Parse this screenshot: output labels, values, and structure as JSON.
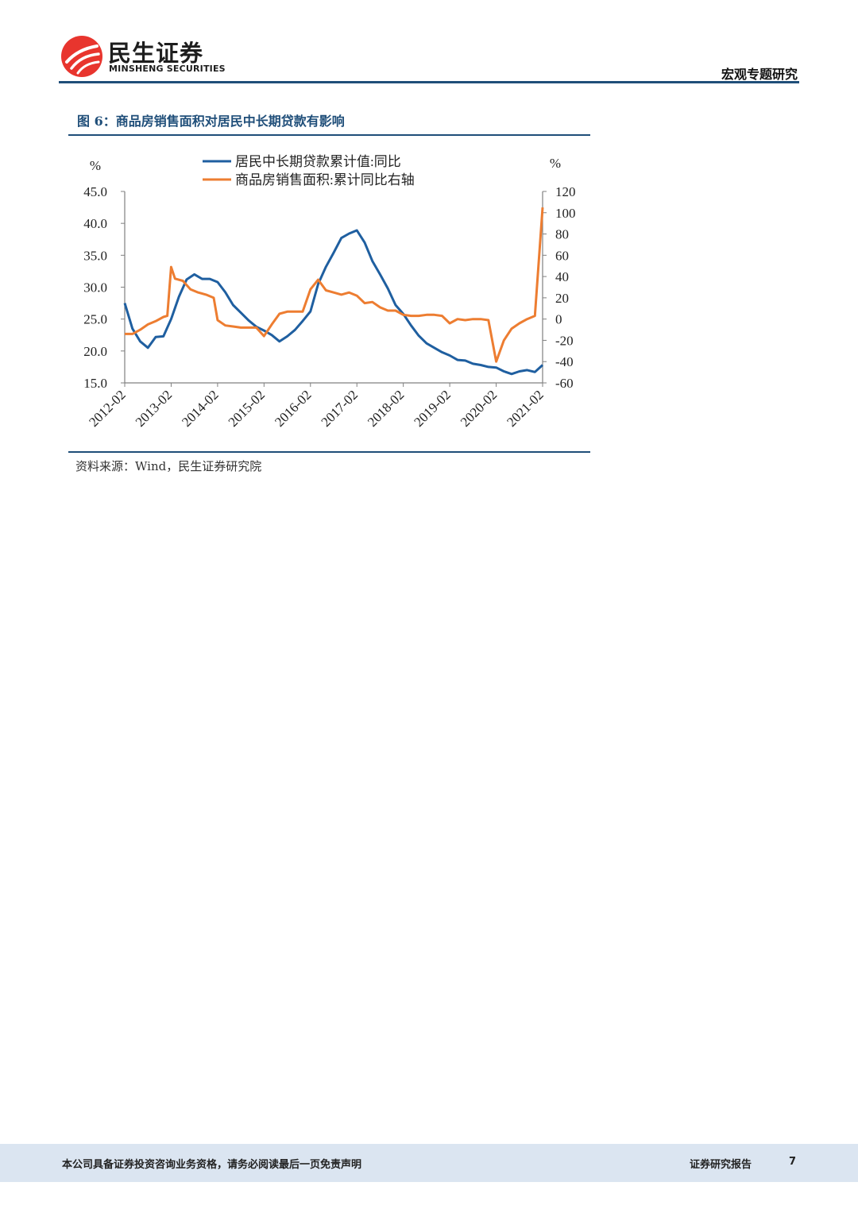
{
  "header": {
    "logo_cn": "民生证券",
    "logo_en": "MINSHENG SECURITIES",
    "report_type": "宏观专题研究"
  },
  "colors": {
    "brand_red": "#e8352e",
    "brand_blue": "#1f4e79",
    "series_blue": "#1f5fa0",
    "series_orange": "#ed7d31"
  },
  "figure": {
    "title": "图 6：商品房销售面积对居民中长期贷款有影响",
    "source": "资料来源：Wind，民生证券研究院"
  },
  "chart_data": {
    "type": "line",
    "title": "",
    "left_axis": {
      "unit": "%",
      "ylim": [
        15,
        45
      ],
      "ticks": [
        "45.0",
        "40.0",
        "35.0",
        "30.0",
        "25.0",
        "20.0",
        "15.0"
      ]
    },
    "right_axis": {
      "unit": "%",
      "ylim": [
        -60,
        120
      ],
      "ticks": [
        "120",
        "100",
        "80",
        "60",
        "40",
        "20",
        "0",
        "-20",
        "-40",
        "-60"
      ]
    },
    "x_ticks": [
      "2012-02",
      "2013-02",
      "2014-02",
      "2015-02",
      "2016-02",
      "2017-02",
      "2018-02",
      "2019-02",
      "2020-02",
      "2021-02"
    ],
    "x_range": [
      "2012-02",
      "2021-02"
    ],
    "legend_position": "top",
    "grid": false,
    "series": [
      {
        "name": "居民中长期贷款累计值:同比",
        "axis": "left",
        "color": "#1f5fa0",
        "points": [
          [
            "2012-02",
            27.5
          ],
          [
            "2012-04",
            23.5
          ],
          [
            "2012-06",
            21.5
          ],
          [
            "2012-08",
            20.5
          ],
          [
            "2012-10",
            22.2
          ],
          [
            "2012-12",
            22.3
          ],
          [
            "2013-02",
            25.0
          ],
          [
            "2013-04",
            28.5
          ],
          [
            "2013-06",
            31.2
          ],
          [
            "2013-08",
            32.0
          ],
          [
            "2013-10",
            31.3
          ],
          [
            "2013-12",
            31.3
          ],
          [
            "2014-02",
            30.8
          ],
          [
            "2014-04",
            29.2
          ],
          [
            "2014-06",
            27.2
          ],
          [
            "2014-08",
            26.0
          ],
          [
            "2014-10",
            24.8
          ],
          [
            "2014-12",
            23.8
          ],
          [
            "2015-02",
            23.2
          ],
          [
            "2015-04",
            22.5
          ],
          [
            "2015-06",
            21.5
          ],
          [
            "2015-08",
            22.3
          ],
          [
            "2015-10",
            23.3
          ],
          [
            "2015-12",
            24.7
          ],
          [
            "2016-02",
            26.2
          ],
          [
            "2016-04",
            30.5
          ],
          [
            "2016-06",
            33.2
          ],
          [
            "2016-08",
            35.4
          ],
          [
            "2016-10",
            37.7
          ],
          [
            "2016-12",
            38.4
          ],
          [
            "2017-02",
            38.9
          ],
          [
            "2017-04",
            37.0
          ],
          [
            "2017-06",
            34.1
          ],
          [
            "2017-08",
            32.0
          ],
          [
            "2017-10",
            29.8
          ],
          [
            "2017-12",
            27.2
          ],
          [
            "2018-02",
            25.8
          ],
          [
            "2018-04",
            24.0
          ],
          [
            "2018-06",
            22.4
          ],
          [
            "2018-08",
            21.2
          ],
          [
            "2018-10",
            20.5
          ],
          [
            "2018-12",
            19.8
          ],
          [
            "2019-02",
            19.3
          ],
          [
            "2019-04",
            18.6
          ],
          [
            "2019-06",
            18.5
          ],
          [
            "2019-08",
            18.0
          ],
          [
            "2019-10",
            17.8
          ],
          [
            "2019-12",
            17.5
          ],
          [
            "2020-02",
            17.4
          ],
          [
            "2020-04",
            16.8
          ],
          [
            "2020-06",
            16.4
          ],
          [
            "2020-08",
            16.8
          ],
          [
            "2020-10",
            17.0
          ],
          [
            "2020-12",
            16.7
          ],
          [
            "2021-02",
            17.8
          ]
        ]
      },
      {
        "name": "商品房销售面积:累计同比右轴",
        "axis": "right",
        "color": "#ed7d31",
        "points": [
          [
            "2012-02",
            -14
          ],
          [
            "2012-04",
            -14
          ],
          [
            "2012-06",
            -10
          ],
          [
            "2012-08",
            -5
          ],
          [
            "2012-10",
            -2
          ],
          [
            "2012-12",
            2
          ],
          [
            "2013-01",
            3
          ],
          [
            "2013-02",
            49
          ],
          [
            "2013-03",
            38
          ],
          [
            "2013-05",
            36
          ],
          [
            "2013-07",
            28
          ],
          [
            "2013-09",
            25
          ],
          [
            "2013-11",
            23
          ],
          [
            "2014-01",
            20
          ],
          [
            "2014-02",
            -1
          ],
          [
            "2014-04",
            -6
          ],
          [
            "2014-06",
            -7
          ],
          [
            "2014-08",
            -8
          ],
          [
            "2014-10",
            -8
          ],
          [
            "2014-12",
            -8
          ],
          [
            "2015-02",
            -16
          ],
          [
            "2015-04",
            -5
          ],
          [
            "2015-06",
            5
          ],
          [
            "2015-08",
            7
          ],
          [
            "2015-10",
            7
          ],
          [
            "2015-12",
            7
          ],
          [
            "2016-02",
            28
          ],
          [
            "2016-04",
            37
          ],
          [
            "2016-06",
            27
          ],
          [
            "2016-08",
            25
          ],
          [
            "2016-10",
            23
          ],
          [
            "2016-12",
            25
          ],
          [
            "2017-02",
            22
          ],
          [
            "2017-04",
            15
          ],
          [
            "2017-06",
            16
          ],
          [
            "2017-08",
            11
          ],
          [
            "2017-10",
            8
          ],
          [
            "2017-12",
            8
          ],
          [
            "2018-02",
            4
          ],
          [
            "2018-04",
            3
          ],
          [
            "2018-06",
            3
          ],
          [
            "2018-08",
            4
          ],
          [
            "2018-10",
            4
          ],
          [
            "2018-12",
            3
          ],
          [
            "2019-02",
            -4
          ],
          [
            "2019-04",
            0
          ],
          [
            "2019-06",
            -1
          ],
          [
            "2019-08",
            0
          ],
          [
            "2019-10",
            0
          ],
          [
            "2019-12",
            -1
          ],
          [
            "2020-02",
            -40
          ],
          [
            "2020-04",
            -20
          ],
          [
            "2020-06",
            -9
          ],
          [
            "2020-08",
            -4
          ],
          [
            "2020-10",
            0
          ],
          [
            "2020-12",
            3
          ],
          [
            "2021-02",
            105
          ]
        ]
      }
    ]
  },
  "footer": {
    "disclaimer": "本公司具备证券投资咨询业务资格，请务必阅读最后一页免责声明",
    "doc_type": "证券研究报告",
    "page": "7"
  }
}
